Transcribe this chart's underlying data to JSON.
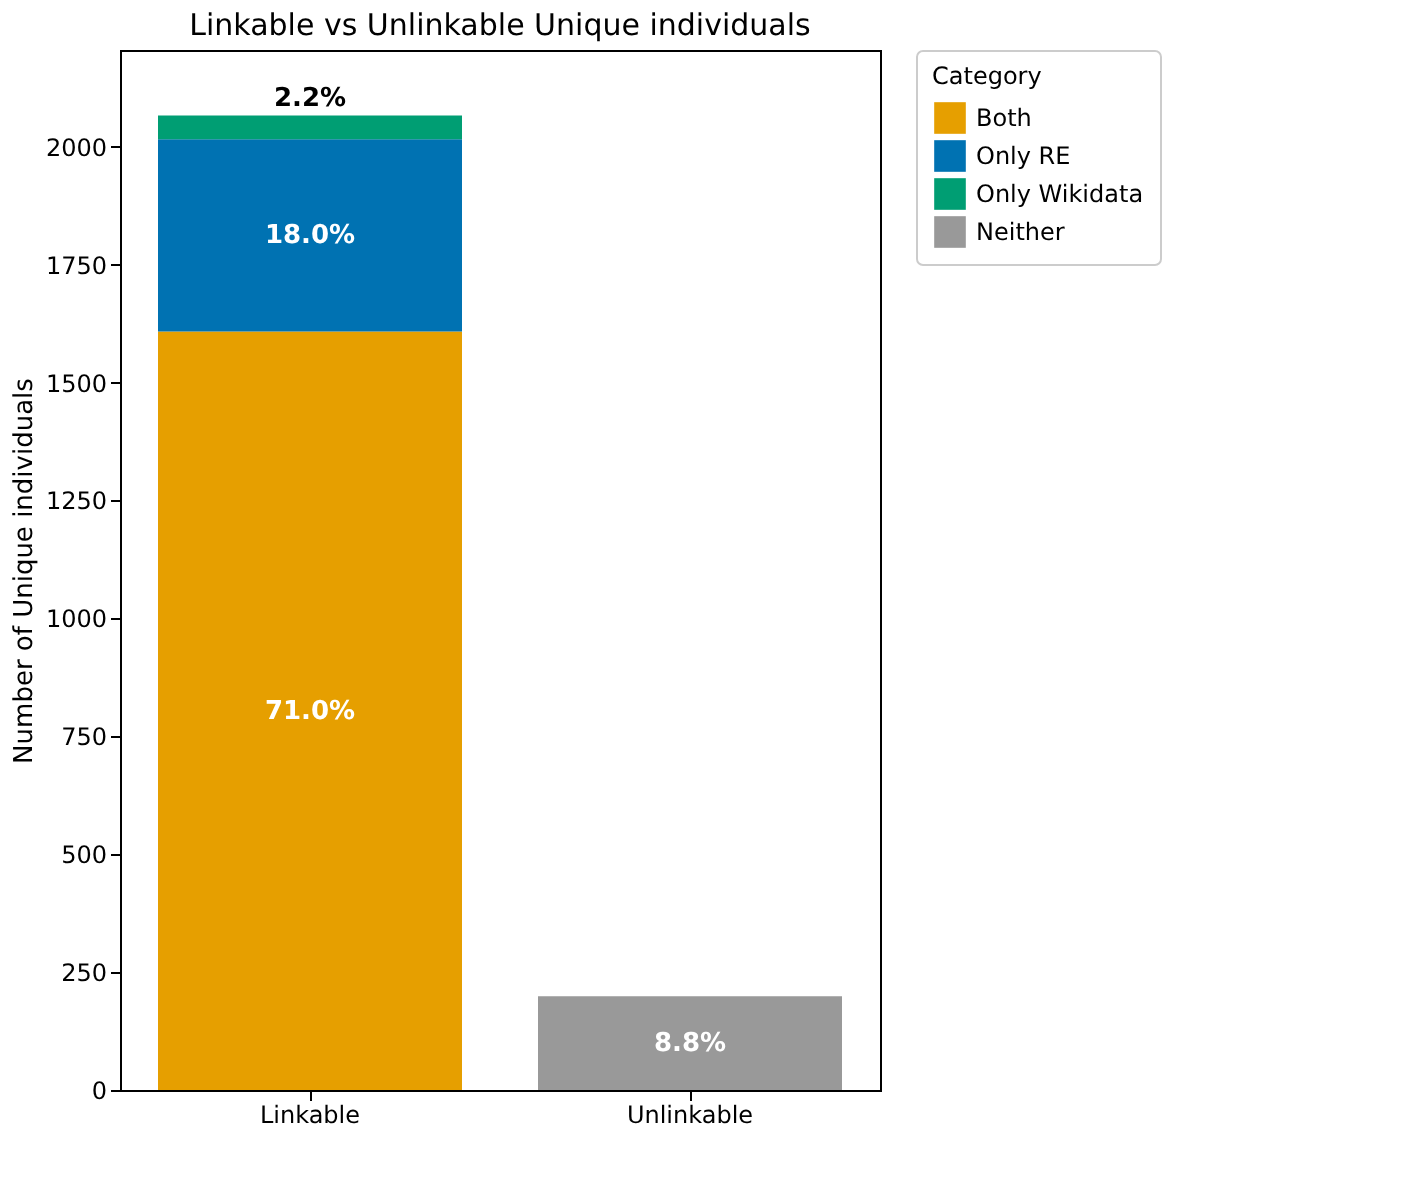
{
  "chart_data": {
    "type": "bar",
    "title": "Linkable vs Unlinkable Unique individuals",
    "ylabel": "Number of Unique individuals",
    "legend_title": "Category",
    "categories": [
      "Linkable",
      "Unlinkable"
    ],
    "stacked": true,
    "series": [
      {
        "name": "Both",
        "color": "#e69f00",
        "values": [
          1608,
          null
        ]
      },
      {
        "name": "Only RE",
        "color": "#0072b2",
        "values": [
          408,
          null
        ]
      },
      {
        "name": "Only Wikidata",
        "color": "#009e73",
        "values": [
          50,
          null
        ]
      },
      {
        "name": "Neither",
        "color": "#999999",
        "values": [
          null,
          199
        ]
      }
    ],
    "annotations": [
      "71.0%",
      "18.0%",
      "2.2%",
      "8.8%"
    ],
    "ylim": [
      0,
      2205
    ],
    "yticks": [
      0,
      250,
      500,
      750,
      1000,
      1250,
      1500,
      1750,
      2000
    ],
    "grid": false,
    "legend": "top right"
  }
}
